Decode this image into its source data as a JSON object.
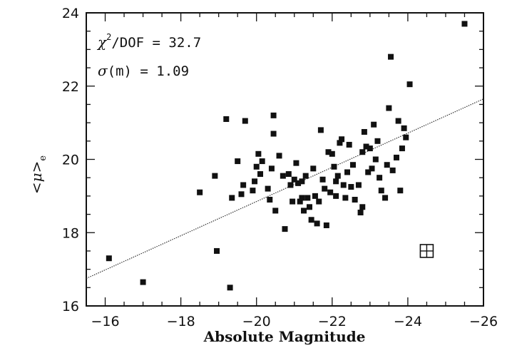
{
  "chart_data": {
    "type": "scatter",
    "title": "",
    "xlabel": "Absolute Magnitude",
    "ylabel_parts": {
      "open": "<",
      "mu": "μ",
      "close": ">",
      "sub": "e"
    },
    "xlim": [
      -15.5,
      -26
    ],
    "ylim": [
      16,
      24
    ],
    "x_ticks": [
      -16,
      -18,
      -20,
      -22,
      -24,
      -26
    ],
    "x_tick_labels": [
      "−16",
      "−18",
      "−20",
      "−22",
      "−24",
      "−26"
    ],
    "y_ticks": [
      16,
      18,
      20,
      22,
      24
    ],
    "y_tick_labels": [
      "16",
      "18",
      "20",
      "22",
      "24"
    ],
    "grid": false,
    "annotations": {
      "chi_line": {
        "chi": "χ",
        "sup": "2",
        "rest": "/DOF = 32.7"
      },
      "sigma_line": {
        "sigma": "σ",
        "rest": "(m) = 1.09"
      }
    },
    "fit_line": {
      "x": [
        -15.5,
        -26
      ],
      "y": [
        16.75,
        21.65
      ]
    },
    "error_bar_marker": {
      "x": -24.5,
      "y": 17.5
    },
    "points": [
      [
        -16.1,
        17.3
      ],
      [
        -17.0,
        16.65
      ],
      [
        -18.5,
        19.1
      ],
      [
        -18.9,
        19.55
      ],
      [
        -18.95,
        17.5
      ],
      [
        -19.2,
        21.1
      ],
      [
        -19.35,
        18.95
      ],
      [
        -19.3,
        16.5
      ],
      [
        -19.5,
        19.95
      ],
      [
        -19.6,
        19.05
      ],
      [
        -19.65,
        19.3
      ],
      [
        -19.7,
        21.05
      ],
      [
        -19.9,
        19.15
      ],
      [
        -19.95,
        19.4
      ],
      [
        -20.0,
        19.8
      ],
      [
        -20.05,
        20.15
      ],
      [
        -20.1,
        19.6
      ],
      [
        -20.15,
        19.95
      ],
      [
        -20.3,
        19.2
      ],
      [
        -20.35,
        18.9
      ],
      [
        -20.4,
        19.75
      ],
      [
        -20.45,
        20.7
      ],
      [
        -20.45,
        21.2
      ],
      [
        -20.5,
        18.6
      ],
      [
        -20.6,
        20.1
      ],
      [
        -20.7,
        19.55
      ],
      [
        -20.75,
        18.1
      ],
      [
        -20.85,
        19.6
      ],
      [
        -20.9,
        19.3
      ],
      [
        -20.95,
        18.85
      ],
      [
        -21.0,
        19.45
      ],
      [
        -21.05,
        19.9
      ],
      [
        -21.1,
        19.35
      ],
      [
        -21.15,
        18.85
      ],
      [
        -21.2,
        19.4
      ],
      [
        -21.2,
        18.95
      ],
      [
        -21.25,
        18.6
      ],
      [
        -21.3,
        19.55
      ],
      [
        -21.35,
        18.95
      ],
      [
        -21.4,
        18.7
      ],
      [
        -21.45,
        18.35
      ],
      [
        -21.5,
        19.75
      ],
      [
        -21.55,
        19.0
      ],
      [
        -21.6,
        18.25
      ],
      [
        -21.65,
        18.85
      ],
      [
        -21.7,
        20.8
      ],
      [
        -21.75,
        19.45
      ],
      [
        -21.8,
        19.2
      ],
      [
        -21.85,
        18.2
      ],
      [
        -21.9,
        20.2
      ],
      [
        -21.95,
        19.1
      ],
      [
        -22.0,
        20.15
      ],
      [
        -22.05,
        19.8
      ],
      [
        -22.1,
        19.4
      ],
      [
        -22.1,
        19.0
      ],
      [
        -22.15,
        19.55
      ],
      [
        -22.2,
        20.45
      ],
      [
        -22.25,
        20.55
      ],
      [
        -22.3,
        19.3
      ],
      [
        -22.35,
        18.95
      ],
      [
        -22.4,
        19.65
      ],
      [
        -22.45,
        20.4
      ],
      [
        -22.5,
        19.25
      ],
      [
        -22.55,
        19.85
      ],
      [
        -22.6,
        18.9
      ],
      [
        -22.7,
        19.3
      ],
      [
        -22.75,
        18.55
      ],
      [
        -22.8,
        18.7
      ],
      [
        -22.8,
        20.2
      ],
      [
        -22.85,
        20.75
      ],
      [
        -22.9,
        20.35
      ],
      [
        -22.95,
        19.65
      ],
      [
        -23.0,
        20.3
      ],
      [
        -23.05,
        19.75
      ],
      [
        -23.1,
        20.95
      ],
      [
        -23.15,
        20.0
      ],
      [
        -23.2,
        20.5
      ],
      [
        -23.25,
        19.5
      ],
      [
        -23.3,
        19.15
      ],
      [
        -23.4,
        18.95
      ],
      [
        -23.45,
        19.85
      ],
      [
        -23.5,
        21.4
      ],
      [
        -23.55,
        22.8
      ],
      [
        -23.6,
        19.7
      ],
      [
        -23.7,
        20.05
      ],
      [
        -23.75,
        21.05
      ],
      [
        -23.8,
        19.15
      ],
      [
        -23.85,
        20.3
      ],
      [
        -23.9,
        20.85
      ],
      [
        -23.95,
        20.6
      ],
      [
        -24.05,
        22.05
      ],
      [
        -25.5,
        23.7
      ]
    ]
  }
}
